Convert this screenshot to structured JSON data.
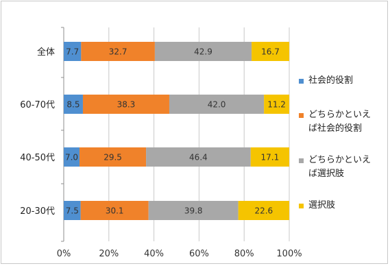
{
  "chart_data": {
    "type": "bar",
    "orientation": "horizontal",
    "stacked": true,
    "categories": [
      "全体",
      "60-70代",
      "40-50代",
      "20-30代"
    ],
    "series": [
      {
        "name": "社会的役割",
        "color": "#4f8fd0",
        "values": [
          7.7,
          8.5,
          7.0,
          7.5
        ]
      },
      {
        "name": "どちらかといえば社会的役割",
        "color": "#f0822a",
        "values": [
          32.7,
          38.3,
          29.5,
          30.1
        ]
      },
      {
        "name": "どちらかといえば選択肢",
        "color": "#a8a8a8",
        "values": [
          42.9,
          42.0,
          46.4,
          39.8
        ]
      },
      {
        "name": "選択肢",
        "color": "#f5c400",
        "values": [
          16.7,
          11.2,
          17.1,
          22.6
        ]
      }
    ],
    "data_labels": [
      [
        "7.7",
        "32.7",
        "42.9",
        "16.7"
      ],
      [
        "8.5",
        "38.3",
        "42.0",
        "11.2"
      ],
      [
        "7.0",
        "29.5",
        "46.4",
        "17.1"
      ],
      [
        "7.5",
        "30.1",
        "39.8",
        "22.6"
      ]
    ],
    "xlim": [
      0,
      100
    ],
    "xticks": [
      "0%",
      "20%",
      "40%",
      "60%",
      "80%",
      "100%"
    ],
    "grid": true,
    "legend_position": "right",
    "legend": [
      {
        "lines": [
          "社会的役割"
        ],
        "color": "#4f8fd0"
      },
      {
        "lines": [
          "どちらかといえ",
          "ば社会的役割"
        ],
        "color": "#f0822a"
      },
      {
        "lines": [
          "どちらかといえ",
          "ば選択肢"
        ],
        "color": "#a8a8a8"
      },
      {
        "lines": [
          "選択肢"
        ],
        "color": "#f5c400"
      }
    ]
  }
}
